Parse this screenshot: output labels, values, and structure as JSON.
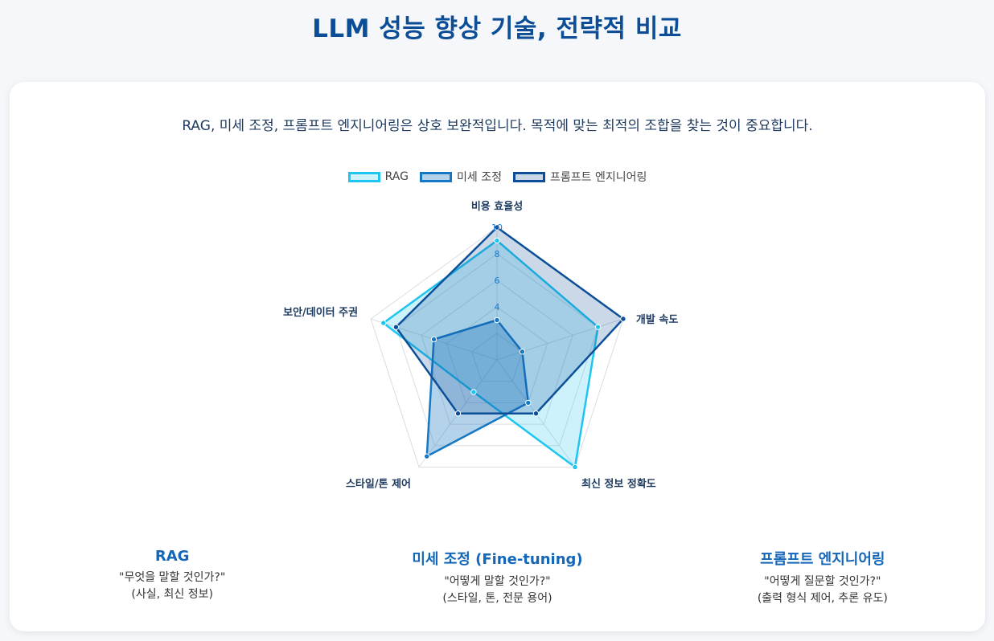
{
  "page": {
    "title": "LLM 성능 향상 기술, 전략적 비교",
    "subtitle": "RAG, 미세 조정, 프롬프트 엔지니어링은 상호 보완적입니다. 목적에 맞는 최적의 조합을 찾는 것이 중요합니다."
  },
  "chart_data": {
    "type": "radar",
    "categories": [
      "비용 효율성",
      "개발 속도",
      "최신 정보 정확도",
      "스타일/톤 제어",
      "보안/데이터 주권"
    ],
    "rmin": 0,
    "rmax": 10,
    "ticks": [
      "4",
      "6",
      "8",
      "10"
    ],
    "tick_values": [
      4,
      6,
      8,
      10
    ],
    "grid": true,
    "legend_position": "top",
    "series": [
      {
        "name": "RAG",
        "values": [
          9,
          8,
          10,
          3,
          9
        ],
        "color": "#1ec5f0",
        "fill": "rgba(30,197,240,0.22)"
      },
      {
        "name": "미세 조정",
        "values": [
          3,
          2,
          4,
          9,
          5
        ],
        "color": "#1677c2",
        "fill": "rgba(22,119,194,0.32)"
      },
      {
        "name": "프롬프트 엔지니어링",
        "values": [
          10,
          10,
          5,
          5,
          8
        ],
        "color": "#0c4f98",
        "fill": "rgba(12,79,152,0.22)"
      }
    ]
  },
  "sections": [
    {
      "title": "RAG",
      "line1": "\"무엇을 말할 것인가?\"",
      "line2": "(사실, 최신 정보)"
    },
    {
      "title": "미세 조정 (Fine-tuning)",
      "line1": "\"어떻게 말할 것인가?\"",
      "line2": "(스타일, 톤, 전문 용어)"
    },
    {
      "title": "프롬프트 엔지니어링",
      "line1": "\"어떻게 질문할 것인가?\"",
      "line2": "(출력 형식 제어, 추론 유도)"
    }
  ]
}
